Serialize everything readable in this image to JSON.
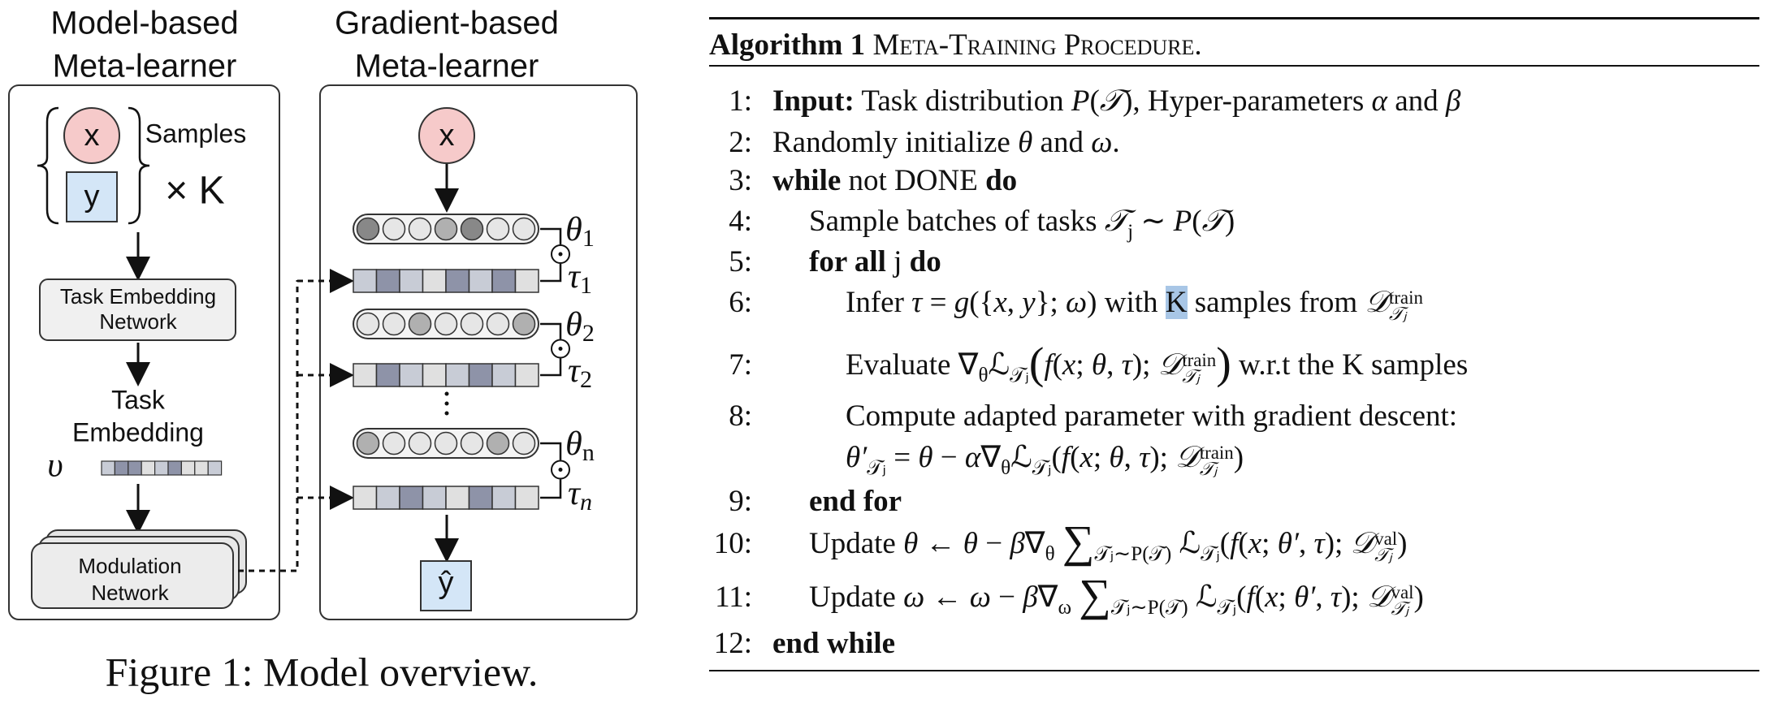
{
  "figure": {
    "left_title": [
      "Model-based",
      "Meta-learner"
    ],
    "right_title": [
      "Gradient-based",
      "Meta-learner"
    ],
    "input_x": "x",
    "input_y": "y",
    "samples": "Samples",
    "times_k": "× K",
    "task_embedding_network": [
      "Task Embedding",
      "Network"
    ],
    "task_embedding": [
      "Task",
      "Embedding"
    ],
    "embedding_symbol": "υ",
    "modulation_network": [
      "Modulation",
      "Network"
    ],
    "gradient_input": "x",
    "params": [
      {
        "theta": "θ",
        "theta_sub": "1",
        "tau": "τ",
        "tau_sub": "1"
      },
      {
        "theta": "θ",
        "theta_sub": "2",
        "tau": "τ",
        "tau_sub": "2"
      },
      {
        "theta": "θ",
        "theta_sub": "n",
        "tau": "τ",
        "tau_sub": "n"
      }
    ],
    "output": "ŷ",
    "caption": "Figure 1: Model overview."
  },
  "algorithm": {
    "label": "Algorithm 1",
    "title": "Meta-Training Procedure.",
    "lines": [
      {
        "num": "1:",
        "parts": [
          [
            "Input:",
            "b"
          ],
          " Task distribution ",
          [
            "P",
            "i"
          ],
          "(",
          [
            "𝒯",
            "i"
          ],
          "), Hyper-parameters ",
          [
            "α",
            "i"
          ],
          " and ",
          [
            "β",
            "i"
          ]
        ]
      },
      {
        "num": "2:",
        "parts": [
          "Randomly initialize ",
          [
            "θ",
            "i"
          ],
          " and ",
          [
            "ω",
            "i"
          ],
          "."
        ]
      },
      {
        "num": "3:",
        "parts": [
          [
            "while",
            "b"
          ],
          " not DONE ",
          [
            "do",
            "b"
          ]
        ]
      },
      {
        "num": "4:",
        "parts": [
          "Sample batches of tasks ",
          [
            "𝒯",
            "i"
          ],
          [
            "j",
            "sub"
          ],
          " ∼ ",
          [
            "P",
            "i"
          ],
          "(",
          [
            "𝒯",
            "i"
          ],
          ")"
        ]
      },
      {
        "num": "5:",
        "parts": [
          [
            "for all",
            "b"
          ],
          " j ",
          [
            "do",
            "b"
          ]
        ]
      },
      {
        "num": "6:",
        "parts": [
          "Infer ",
          [
            "τ",
            "i"
          ],
          " = ",
          [
            "g",
            "i"
          ],
          "({",
          [
            "x",
            "i"
          ],
          ", ",
          [
            "y",
            "i"
          ],
          "}; ",
          [
            "ω",
            "i"
          ],
          ") with ",
          [
            "K",
            "hl"
          ],
          " samples from ",
          [
            "𝒟",
            "i"
          ],
          {
            "sup": "train",
            "sub": "𝒯ⱼ"
          }
        ]
      },
      {
        "num": "7:",
        "parts": [
          "Evaluate ∇",
          [
            "θ",
            "sub"
          ],
          "ℒ",
          [
            "𝒯ⱼ",
            "sub"
          ],
          [
            "(",
            "big"
          ],
          [
            "f",
            "i"
          ],
          "(",
          [
            "x",
            "i"
          ],
          "; ",
          [
            "θ",
            "i"
          ],
          ", ",
          [
            "τ",
            "i"
          ],
          "); ",
          [
            "𝒟",
            "i"
          ],
          {
            "sup": "train",
            "sub": "𝒯ⱼ"
          },
          [
            ")",
            "big"
          ],
          " w.r.t the K samples"
        ]
      },
      {
        "num": "8:",
        "parts": [
          "Compute adapted parameter with gradient descent:"
        ]
      },
      {
        "parts": [
          [
            "θ′",
            "i"
          ],
          [
            "𝒯ⱼ",
            "sub"
          ],
          " = ",
          [
            "θ",
            "i"
          ],
          " − ",
          [
            "α",
            "i"
          ],
          "∇",
          [
            "θ",
            "sub"
          ],
          "ℒ",
          [
            "𝒯ⱼ",
            "sub"
          ],
          "(",
          [
            "f",
            "i"
          ],
          "(",
          [
            "x",
            "i"
          ],
          "; ",
          [
            "θ",
            "i"
          ],
          ", ",
          [
            "τ",
            "i"
          ],
          "); ",
          [
            "𝒟",
            "i"
          ],
          {
            "sup": "train",
            "sub": "𝒯ⱼ"
          },
          ")"
        ]
      },
      {
        "num": "9:",
        "parts": [
          [
            "end for",
            "b"
          ]
        ]
      },
      {
        "num": "10:",
        "parts": [
          "Update ",
          [
            "θ",
            "i"
          ],
          " ← ",
          [
            "θ",
            "i"
          ],
          " − ",
          [
            "β",
            "i"
          ],
          "∇",
          [
            "θ",
            "sub"
          ],
          " ",
          [
            "∑",
            "big"
          ],
          [
            "𝒯ⱼ∼P(𝒯)",
            "sub"
          ],
          " ℒ",
          [
            "𝒯ⱼ",
            "sub"
          ],
          "(",
          [
            "f",
            "i"
          ],
          "(",
          [
            "x",
            "i"
          ],
          "; ",
          [
            "θ′",
            "i"
          ],
          ", ",
          [
            "τ",
            "i"
          ],
          "); ",
          [
            "𝒟",
            "i"
          ],
          {
            "sup": "val",
            "sub": "𝒯ⱼ"
          },
          ")"
        ]
      },
      {
        "num": "11:",
        "parts": [
          "Update ",
          [
            "ω",
            "i"
          ],
          " ← ",
          [
            "ω",
            "i"
          ],
          " − ",
          [
            "β",
            "i"
          ],
          "∇",
          [
            "ω",
            "sub"
          ],
          " ",
          [
            "∑",
            "big"
          ],
          [
            "𝒯ⱼ∼P(𝒯)",
            "sub"
          ],
          " ℒ",
          [
            "𝒯ⱼ",
            "sub"
          ],
          "(",
          [
            "f",
            "i"
          ],
          "(",
          [
            "x",
            "i"
          ],
          "; ",
          [
            "θ′",
            "i"
          ],
          ", ",
          [
            "τ",
            "i"
          ],
          "); ",
          [
            "𝒟",
            "i"
          ],
          {
            "sup": "val",
            "sub": "𝒯ⱼ"
          },
          ")"
        ]
      },
      {
        "num": "12:",
        "parts": [
          [
            "end while",
            "b"
          ]
        ]
      }
    ]
  }
}
